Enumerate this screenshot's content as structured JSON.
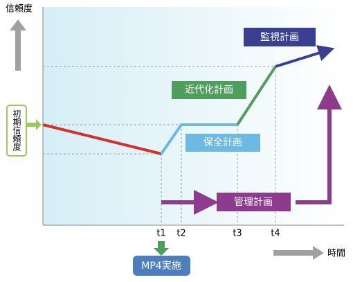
{
  "y_axis_label": "信頼度",
  "initial_label": "初期信頼度",
  "x_axis_label": "時間",
  "plans": {
    "monitoring": "監視計画",
    "modernization": "近代化計画",
    "maintenance": "保全計画",
    "management": "管理計画"
  },
  "time_points": [
    "t1",
    "t2",
    "t3",
    "t4"
  ],
  "action": "MP4実施"
}
